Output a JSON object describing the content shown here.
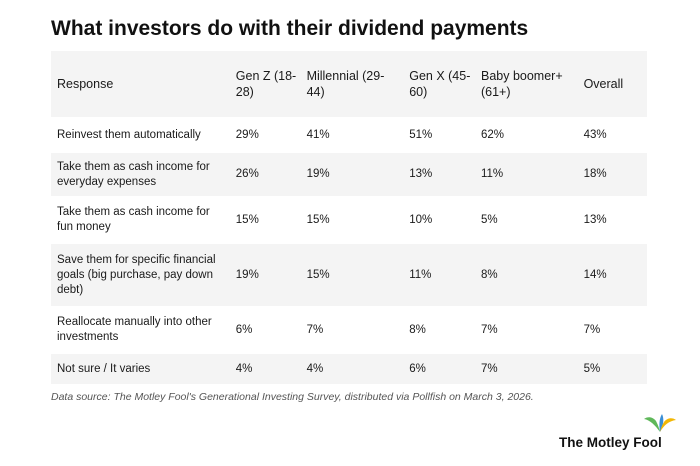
{
  "title": "What investors do with their dividend payments",
  "chart_data": {
    "type": "table",
    "columns": [
      "Response",
      "Gen Z (18-28)",
      "Millennial (29-44)",
      "Gen X (45-60)",
      "Baby boomer+ (61+)",
      "Overall"
    ],
    "rows": [
      [
        "Reinvest them automatically",
        "29%",
        "41%",
        "51%",
        "62%",
        "43%"
      ],
      [
        "Take them as cash income for everyday expenses",
        "26%",
        "19%",
        "13%",
        "11%",
        "18%"
      ],
      [
        "Take them as cash income for fun money",
        "15%",
        "15%",
        "10%",
        "5%",
        "13%"
      ],
      [
        "Save them for specific financial goals (big purchase, pay down debt)",
        "19%",
        "15%",
        "11%",
        "8%",
        "14%"
      ],
      [
        "Reallocate manually into other investments",
        "6%",
        "7%",
        "8%",
        "7%",
        "7%"
      ],
      [
        "Not sure / It varies",
        "4%",
        "4%",
        "6%",
        "7%",
        "5%"
      ]
    ]
  },
  "source": "Data source: The Motley Fool's Generational Investing Survey, distributed via Pollfish on March 3, 2026.",
  "brand": {
    "name": "The Motley Fool",
    "logo_icon": "jester-hat-icon",
    "colors": {
      "green": "#5fb85a",
      "blue": "#3a8fd6",
      "yellow": "#f2b705"
    }
  }
}
